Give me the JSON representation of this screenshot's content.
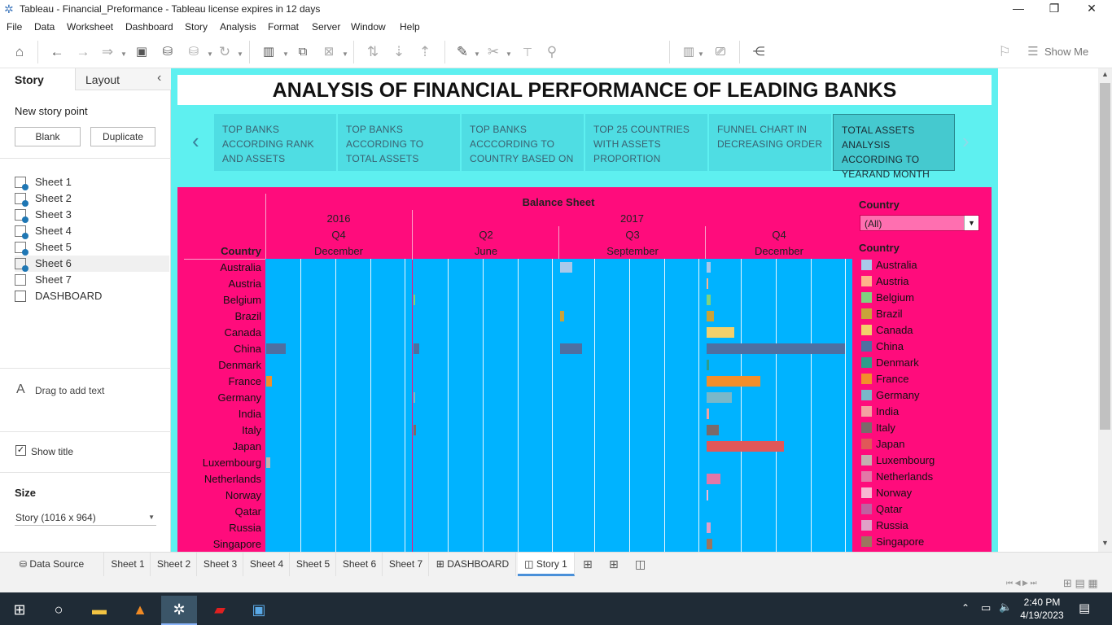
{
  "window": {
    "title": "Tableau - Financial_Preformance - Tableau license expires in 12 days"
  },
  "menu": [
    "File",
    "Data",
    "Worksheet",
    "Dashboard",
    "Story",
    "Analysis",
    "Format",
    "Server",
    "Window",
    "Help"
  ],
  "toolbar": {
    "show_me": "Show Me"
  },
  "left": {
    "tab_story": "Story",
    "tab_layout": "Layout",
    "new_story_point": "New story point",
    "blank": "Blank",
    "duplicate": "Duplicate",
    "sheets": [
      "Sheet 1",
      "Sheet 2",
      "Sheet 3",
      "Sheet 4",
      "Sheet 5",
      "Sheet 6",
      "Sheet 7",
      "DASHBOARD"
    ],
    "drag_text": "Drag to add text",
    "show_title": "Show title",
    "size_label": "Size",
    "size_value": "Story (1016 x 964)"
  },
  "story": {
    "title": "ANALYSIS OF FINANCIAL PERFORMANCE OF LEADING BANKS",
    "points": [
      "TOP BANKS ACCORDING RANK AND ASSETS",
      "TOP BANKS ACCORDING TO TOTAL ASSETS",
      "TOP BANKS ACCCORDING TO COUNTRY BASED ON",
      "TOP 25 COUNTRIES WITH ASSETS PROPORTION",
      "FUNNEL CHART IN DECREASING ORDER",
      "TOTAL ASSETS ANALYSIS ACCORDING TO YEARAND MONTH"
    ]
  },
  "chart_data": {
    "type": "bar",
    "title": "Balance Sheet",
    "row_header": "Country",
    "columns": [
      {
        "year": "2016",
        "quarter": "Q4",
        "month": "December"
      },
      {
        "year": "2017",
        "quarter": "Q2",
        "month": "June"
      },
      {
        "year": "2017",
        "quarter": "Q3",
        "month": "September"
      },
      {
        "year": "2017",
        "quarter": "Q4",
        "month": "December"
      }
    ],
    "categories": [
      "Australia",
      "Austria",
      "Belgium",
      "Brazil",
      "Canada",
      "China",
      "Denmark",
      "France",
      "Germany",
      "India",
      "Italy",
      "Japan",
      "Luxembourg",
      "Netherlands",
      "Norway",
      "Qatar",
      "Russia",
      "Singapore"
    ],
    "values": [
      [
        0,
        0,
        0.09,
        0.03
      ],
      [
        0,
        0,
        0,
        0.01
      ],
      [
        0,
        0.01,
        0,
        0.03
      ],
      [
        0,
        0,
        0.03,
        0.05
      ],
      [
        0,
        0,
        0,
        0.2
      ],
      [
        0.14,
        0.04,
        0.16,
        1.0
      ],
      [
        0,
        0,
        0,
        0.02
      ],
      [
        0.04,
        0,
        0,
        0.39
      ],
      [
        0,
        0.01,
        0,
        0.18
      ],
      [
        0,
        0,
        0,
        0.02
      ],
      [
        0,
        0.02,
        0,
        0.09
      ],
      [
        0,
        0,
        0,
        0.56
      ],
      [
        0.03,
        0,
        0,
        0
      ],
      [
        0,
        0,
        0,
        0.1
      ],
      [
        0,
        0,
        0,
        0.01
      ],
      [
        0,
        0,
        0,
        0
      ],
      [
        0,
        0,
        0,
        0.03
      ],
      [
        0,
        0,
        0,
        0.04
      ]
    ],
    "colors": [
      "#a9c9ea",
      "#ffb38a",
      "#7fd27f",
      "#c9a33a",
      "#f2d06b",
      "#4e6fa1",
      "#2f9c8a",
      "#f28e2b",
      "#79b8c9",
      "#f4a1a1",
      "#7a6a6a",
      "#e15759",
      "#c4b0b0",
      "#e377a7",
      "#f7b6d2",
      "#c05fa0",
      "#e0a0c8",
      "#9c755f"
    ]
  },
  "legend": {
    "filter_title": "Country",
    "filter_value": "(All)",
    "color_title": "Country"
  },
  "tabs": [
    "Data Source",
    "Sheet 1",
    "Sheet 2",
    "Sheet 3",
    "Sheet 4",
    "Sheet 5",
    "Sheet 6",
    "Sheet 7",
    "DASHBOARD",
    "Story 1"
  ],
  "taskbar": {
    "time": "2:40 PM",
    "date": "4/19/2023"
  }
}
